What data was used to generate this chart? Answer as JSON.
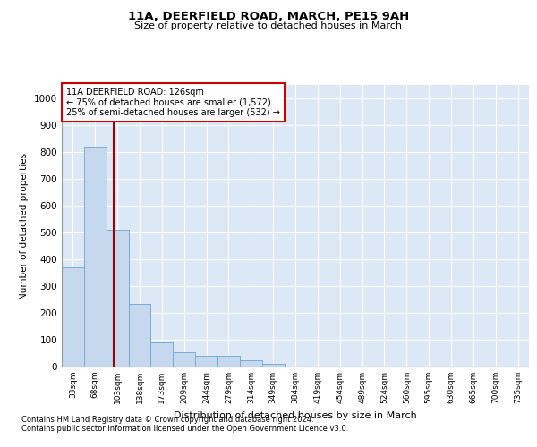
{
  "title": "11A, DEERFIELD ROAD, MARCH, PE15 9AH",
  "subtitle": "Size of property relative to detached houses in March",
  "xlabel": "Distribution of detached houses by size in March",
  "ylabel": "Number of detached properties",
  "bar_color": "#c5d8ee",
  "bar_edge_color": "#7aadd4",
  "background_color": "#dce8f5",
  "grid_color": "#ffffff",
  "categories": [
    "33sqm",
    "68sqm",
    "103sqm",
    "138sqm",
    "173sqm",
    "209sqm",
    "244sqm",
    "279sqm",
    "314sqm",
    "349sqm",
    "384sqm",
    "419sqm",
    "454sqm",
    "489sqm",
    "524sqm",
    "560sqm",
    "595sqm",
    "630sqm",
    "665sqm",
    "700sqm",
    "735sqm"
  ],
  "values": [
    370,
    820,
    510,
    235,
    90,
    55,
    40,
    40,
    25,
    10,
    0,
    0,
    0,
    0,
    0,
    0,
    0,
    0,
    0,
    0,
    0
  ],
  "ylim": [
    0,
    1050
  ],
  "yticks": [
    0,
    100,
    200,
    300,
    400,
    500,
    600,
    700,
    800,
    900,
    1000
  ],
  "annotation_line1": "11A DEERFIELD ROAD: 126sqm",
  "annotation_line2": "← 75% of detached houses are smaller (1,572)",
  "annotation_line3": "25% of semi-detached houses are larger (532) →",
  "vline_x_index": 1.82,
  "vline_color": "#990000",
  "annotation_box_color": "#cc0000",
  "footnote1": "Contains HM Land Registry data © Crown copyright and database right 2024.",
  "footnote2": "Contains public sector information licensed under the Open Government Licence v3.0."
}
